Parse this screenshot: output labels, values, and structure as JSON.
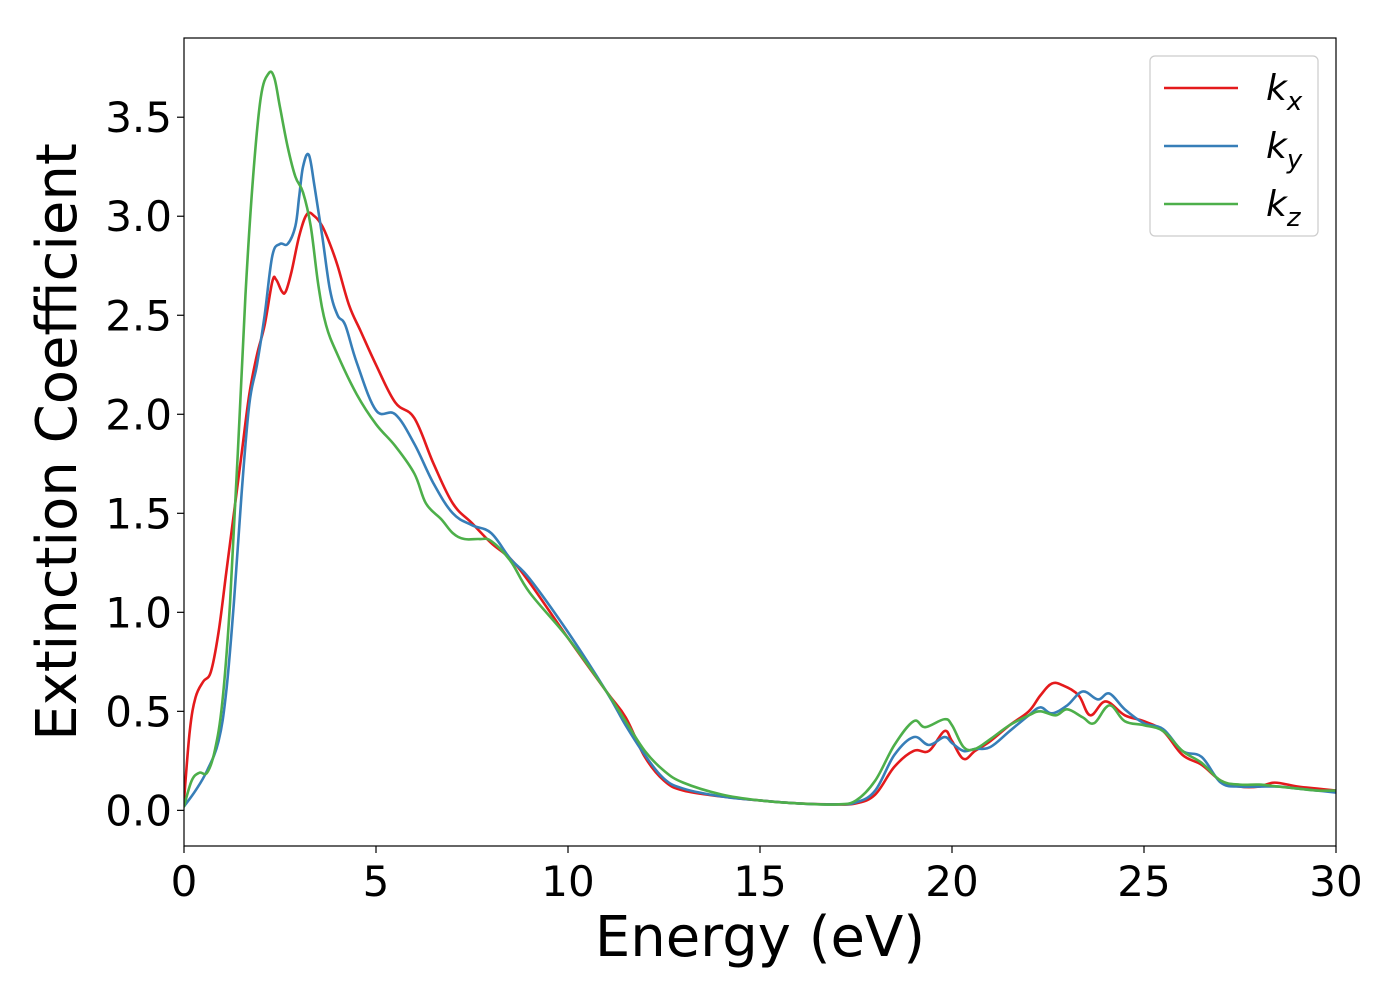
{
  "chart_data": {
    "type": "line",
    "title": "",
    "xlabel": "Energy (eV)",
    "ylabel": "Extinction Coefficient",
    "xlim": [
      0,
      30
    ],
    "ylim": [
      -0.18,
      3.9
    ],
    "x_ticks": [
      0,
      5,
      10,
      15,
      20,
      25,
      30
    ],
    "x_tick_labels": [
      "0",
      "5",
      "10",
      "15",
      "20",
      "25",
      "30"
    ],
    "y_ticks": [
      0.0,
      0.5,
      1.0,
      1.5,
      2.0,
      2.5,
      3.0,
      3.5
    ],
    "y_tick_labels": [
      "0.0",
      "0.5",
      "1.0",
      "1.5",
      "2.0",
      "2.5",
      "3.0",
      "3.5"
    ],
    "grid": false,
    "legend_position": "top-right",
    "series": [
      {
        "name": "k",
        "subscript": "x",
        "color": "#e41a1c",
        "points": [
          [
            0,
            0.05
          ],
          [
            0.15,
            0.4
          ],
          [
            0.3,
            0.57
          ],
          [
            0.5,
            0.65
          ],
          [
            0.7,
            0.7
          ],
          [
            0.9,
            0.9
          ],
          [
            1.1,
            1.2
          ],
          [
            1.3,
            1.5
          ],
          [
            1.5,
            1.8
          ],
          [
            1.7,
            2.1
          ],
          [
            1.9,
            2.3
          ],
          [
            2.1,
            2.45
          ],
          [
            2.3,
            2.67
          ],
          [
            2.4,
            2.68
          ],
          [
            2.55,
            2.62
          ],
          [
            2.65,
            2.62
          ],
          [
            2.8,
            2.72
          ],
          [
            3.0,
            2.9
          ],
          [
            3.2,
            3.01
          ],
          [
            3.4,
            3.0
          ],
          [
            3.6,
            2.95
          ],
          [
            3.8,
            2.86
          ],
          [
            4.0,
            2.75
          ],
          [
            4.3,
            2.55
          ],
          [
            4.6,
            2.42
          ],
          [
            5.0,
            2.25
          ],
          [
            5.5,
            2.06
          ],
          [
            6.0,
            1.98
          ],
          [
            6.5,
            1.75
          ],
          [
            7.0,
            1.55
          ],
          [
            7.5,
            1.45
          ],
          [
            8.0,
            1.35
          ],
          [
            8.5,
            1.27
          ],
          [
            9.0,
            1.15
          ],
          [
            10.0,
            0.87
          ],
          [
            11.0,
            0.6
          ],
          [
            11.5,
            0.47
          ],
          [
            12.0,
            0.27
          ],
          [
            12.5,
            0.15
          ],
          [
            13.0,
            0.1
          ],
          [
            14.0,
            0.07
          ],
          [
            15.0,
            0.05
          ],
          [
            16.0,
            0.035
          ],
          [
            17.0,
            0.03
          ],
          [
            17.5,
            0.035
          ],
          [
            18.0,
            0.08
          ],
          [
            18.5,
            0.22
          ],
          [
            19.0,
            0.3
          ],
          [
            19.4,
            0.3
          ],
          [
            19.8,
            0.4
          ],
          [
            20.0,
            0.35
          ],
          [
            20.3,
            0.26
          ],
          [
            20.6,
            0.3
          ],
          [
            21.0,
            0.35
          ],
          [
            21.5,
            0.43
          ],
          [
            22.0,
            0.5
          ],
          [
            22.3,
            0.58
          ],
          [
            22.6,
            0.64
          ],
          [
            22.9,
            0.63
          ],
          [
            23.3,
            0.58
          ],
          [
            23.6,
            0.48
          ],
          [
            24.0,
            0.55
          ],
          [
            24.5,
            0.48
          ],
          [
            25.0,
            0.45
          ],
          [
            25.5,
            0.4
          ],
          [
            26.0,
            0.28
          ],
          [
            26.5,
            0.23
          ],
          [
            27.0,
            0.15
          ],
          [
            27.5,
            0.12
          ],
          [
            28.0,
            0.12
          ],
          [
            28.4,
            0.14
          ],
          [
            29.0,
            0.12
          ],
          [
            29.5,
            0.11
          ],
          [
            30.0,
            0.1
          ]
        ]
      },
      {
        "name": "k",
        "subscript": "y",
        "color": "#377eb8",
        "points": [
          [
            0,
            0.02
          ],
          [
            0.3,
            0.1
          ],
          [
            0.6,
            0.2
          ],
          [
            0.9,
            0.35
          ],
          [
            1.1,
            0.6
          ],
          [
            1.3,
            1.05
          ],
          [
            1.5,
            1.6
          ],
          [
            1.7,
            2.05
          ],
          [
            1.9,
            2.25
          ],
          [
            2.1,
            2.5
          ],
          [
            2.3,
            2.8
          ],
          [
            2.5,
            2.86
          ],
          [
            2.7,
            2.86
          ],
          [
            2.9,
            2.95
          ],
          [
            3.0,
            3.1
          ],
          [
            3.1,
            3.25
          ],
          [
            3.25,
            3.31
          ],
          [
            3.4,
            3.15
          ],
          [
            3.6,
            2.9
          ],
          [
            3.8,
            2.63
          ],
          [
            4.0,
            2.5
          ],
          [
            4.2,
            2.45
          ],
          [
            4.5,
            2.26
          ],
          [
            5.0,
            2.02
          ],
          [
            5.5,
            2.0
          ],
          [
            6.0,
            1.85
          ],
          [
            6.5,
            1.65
          ],
          [
            7.0,
            1.5
          ],
          [
            7.5,
            1.44
          ],
          [
            8.0,
            1.4
          ],
          [
            8.5,
            1.27
          ],
          [
            9.0,
            1.17
          ],
          [
            10.0,
            0.9
          ],
          [
            11.0,
            0.6
          ],
          [
            11.5,
            0.43
          ],
          [
            12.0,
            0.28
          ],
          [
            12.5,
            0.16
          ],
          [
            13.0,
            0.11
          ],
          [
            14.0,
            0.07
          ],
          [
            15.0,
            0.05
          ],
          [
            16.0,
            0.035
          ],
          [
            17.0,
            0.03
          ],
          [
            17.5,
            0.04
          ],
          [
            18.0,
            0.1
          ],
          [
            18.5,
            0.28
          ],
          [
            19.0,
            0.37
          ],
          [
            19.4,
            0.33
          ],
          [
            19.8,
            0.37
          ],
          [
            20.0,
            0.34
          ],
          [
            20.3,
            0.3
          ],
          [
            20.6,
            0.31
          ],
          [
            21.0,
            0.32
          ],
          [
            21.5,
            0.4
          ],
          [
            22.0,
            0.48
          ],
          [
            22.3,
            0.52
          ],
          [
            22.6,
            0.49
          ],
          [
            23.0,
            0.53
          ],
          [
            23.4,
            0.6
          ],
          [
            23.8,
            0.56
          ],
          [
            24.1,
            0.59
          ],
          [
            24.5,
            0.51
          ],
          [
            25.0,
            0.44
          ],
          [
            25.5,
            0.41
          ],
          [
            26.0,
            0.3
          ],
          [
            26.5,
            0.27
          ],
          [
            27.0,
            0.14
          ],
          [
            27.5,
            0.12
          ],
          [
            28.0,
            0.12
          ],
          [
            28.5,
            0.12
          ],
          [
            29.0,
            0.11
          ],
          [
            29.5,
            0.1
          ],
          [
            30.0,
            0.09
          ]
        ]
      },
      {
        "name": "k",
        "subscript": "z",
        "color": "#4daf4a",
        "points": [
          [
            0,
            0.02
          ],
          [
            0.2,
            0.15
          ],
          [
            0.4,
            0.19
          ],
          [
            0.6,
            0.19
          ],
          [
            0.8,
            0.3
          ],
          [
            1.0,
            0.55
          ],
          [
            1.2,
            1.05
          ],
          [
            1.4,
            1.8
          ],
          [
            1.6,
            2.6
          ],
          [
            1.8,
            3.2
          ],
          [
            2.0,
            3.6
          ],
          [
            2.2,
            3.72
          ],
          [
            2.35,
            3.7
          ],
          [
            2.5,
            3.55
          ],
          [
            2.7,
            3.35
          ],
          [
            2.9,
            3.2
          ],
          [
            3.1,
            3.12
          ],
          [
            3.3,
            2.95
          ],
          [
            3.5,
            2.65
          ],
          [
            3.7,
            2.45
          ],
          [
            4.0,
            2.3
          ],
          [
            4.5,
            2.1
          ],
          [
            5.0,
            1.95
          ],
          [
            5.5,
            1.84
          ],
          [
            6.0,
            1.7
          ],
          [
            6.3,
            1.55
          ],
          [
            6.7,
            1.47
          ],
          [
            7.0,
            1.4
          ],
          [
            7.3,
            1.37
          ],
          [
            7.7,
            1.37
          ],
          [
            8.0,
            1.36
          ],
          [
            8.5,
            1.26
          ],
          [
            9.0,
            1.1
          ],
          [
            10.0,
            0.87
          ],
          [
            11.0,
            0.6
          ],
          [
            11.5,
            0.45
          ],
          [
            12.0,
            0.3
          ],
          [
            12.5,
            0.2
          ],
          [
            13.0,
            0.14
          ],
          [
            14.0,
            0.08
          ],
          [
            15.0,
            0.05
          ],
          [
            16.0,
            0.035
          ],
          [
            17.0,
            0.03
          ],
          [
            17.5,
            0.05
          ],
          [
            18.0,
            0.15
          ],
          [
            18.5,
            0.33
          ],
          [
            19.0,
            0.45
          ],
          [
            19.3,
            0.42
          ],
          [
            19.8,
            0.46
          ],
          [
            20.0,
            0.43
          ],
          [
            20.3,
            0.32
          ],
          [
            20.6,
            0.31
          ],
          [
            21.0,
            0.36
          ],
          [
            21.5,
            0.43
          ],
          [
            22.0,
            0.48
          ],
          [
            22.3,
            0.5
          ],
          [
            22.7,
            0.48
          ],
          [
            23.0,
            0.51
          ],
          [
            23.4,
            0.47
          ],
          [
            23.7,
            0.44
          ],
          [
            24.1,
            0.53
          ],
          [
            24.5,
            0.45
          ],
          [
            25.0,
            0.43
          ],
          [
            25.5,
            0.4
          ],
          [
            26.0,
            0.3
          ],
          [
            26.5,
            0.24
          ],
          [
            27.0,
            0.15
          ],
          [
            27.5,
            0.13
          ],
          [
            28.0,
            0.13
          ],
          [
            28.5,
            0.12
          ],
          [
            29.0,
            0.11
          ],
          [
            29.5,
            0.1
          ],
          [
            30.0,
            0.1
          ]
        ]
      }
    ]
  }
}
